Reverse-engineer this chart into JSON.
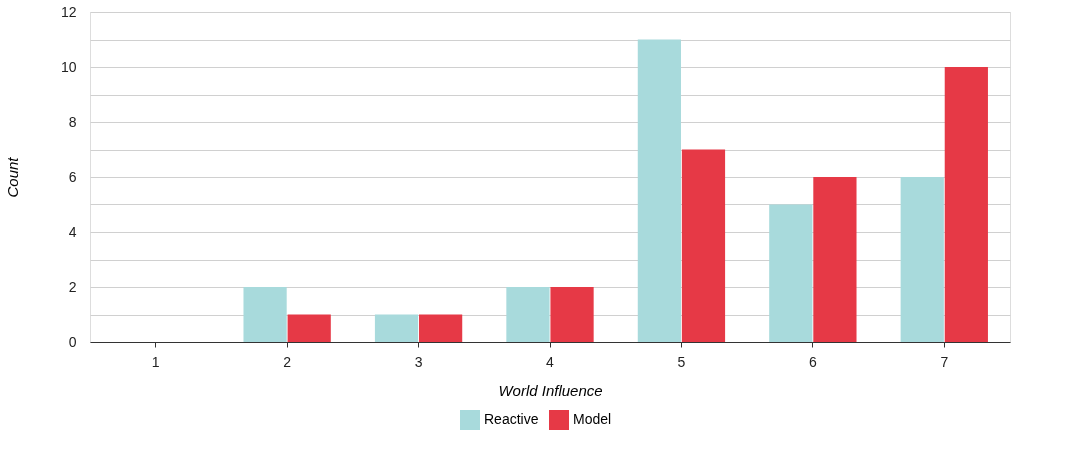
{
  "chart_data": {
    "type": "bar",
    "xlabel": "World Influence",
    "ylabel": "Count",
    "categories": [
      "1",
      "2",
      "3",
      "4",
      "5",
      "6",
      "7"
    ],
    "series": [
      {
        "name": "Reactive",
        "color": "#a8dadc",
        "values": [
          0,
          2,
          1,
          2,
          11,
          5,
          6
        ]
      },
      {
        "name": "Model",
        "color": "#e63946",
        "values": [
          0,
          1,
          1,
          2,
          7,
          6,
          10
        ]
      }
    ],
    "ylim": [
      0,
      12
    ],
    "yticks": [
      0,
      {
        "value": 1,
        "label": null
      },
      2,
      {
        "value": 3,
        "label": null
      },
      4,
      {
        "value": 5,
        "label": null
      },
      6,
      {
        "value": 7,
        "label": null
      },
      8,
      {
        "value": 9,
        "label": null
      },
      10,
      {
        "value": 11,
        "label": null
      },
      12
    ],
    "grid": "y",
    "legend": "bottom"
  }
}
